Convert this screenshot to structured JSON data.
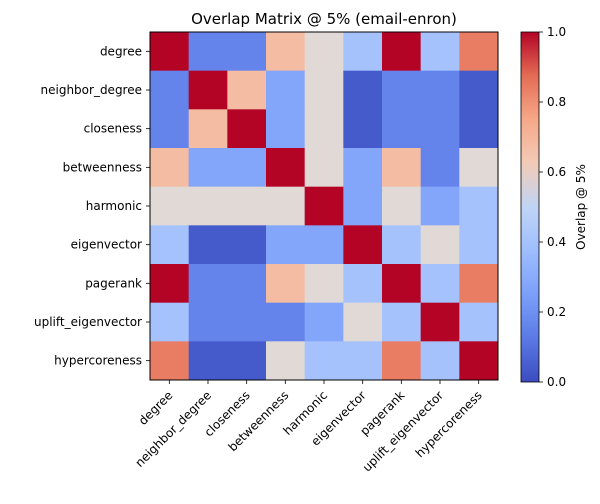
{
  "chart_data": {
    "type": "heatmap",
    "title": "Overlap Matrix @ 5% (email-enron)",
    "rows": [
      "degree",
      "neighbor_degree",
      "closeness",
      "betweenness",
      "harmonic",
      "eigenvector",
      "pagerank",
      "uplift_eigenvector",
      "hypercoreness"
    ],
    "cols": [
      "degree",
      "neighbor_degree",
      "closeness",
      "betweenness",
      "harmonic",
      "eigenvector",
      "pagerank",
      "uplift_eigenvector",
      "hypercoreness"
    ],
    "values": [
      [
        1.0,
        0.16,
        0.16,
        0.68,
        0.52,
        0.4,
        1.0,
        0.4,
        0.84
      ],
      [
        0.16,
        1.0,
        0.68,
        0.28,
        0.52,
        0.04,
        0.16,
        0.16,
        0.04
      ],
      [
        0.16,
        0.68,
        1.0,
        0.28,
        0.52,
        0.04,
        0.16,
        0.16,
        0.04
      ],
      [
        0.68,
        0.28,
        0.28,
        1.0,
        0.52,
        0.28,
        0.68,
        0.16,
        0.52
      ],
      [
        0.52,
        0.52,
        0.52,
        0.52,
        1.0,
        0.28,
        0.52,
        0.28,
        0.4
      ],
      [
        0.4,
        0.04,
        0.04,
        0.28,
        0.28,
        1.0,
        0.4,
        0.52,
        0.4
      ],
      [
        1.0,
        0.16,
        0.16,
        0.68,
        0.52,
        0.4,
        1.0,
        0.4,
        0.84
      ],
      [
        0.4,
        0.16,
        0.16,
        0.16,
        0.28,
        0.52,
        0.4,
        1.0,
        0.4
      ],
      [
        0.84,
        0.04,
        0.04,
        0.52,
        0.4,
        0.4,
        0.84,
        0.4,
        1.0
      ]
    ],
    "colormap": "coolwarm",
    "vmin": 0.0,
    "vmax": 1.0,
    "colorbar": {
      "label": "Overlap @ 5%",
      "ticks": [
        "0.0",
        "0.2",
        "0.4",
        "0.6",
        "0.8",
        "1.0"
      ]
    }
  }
}
